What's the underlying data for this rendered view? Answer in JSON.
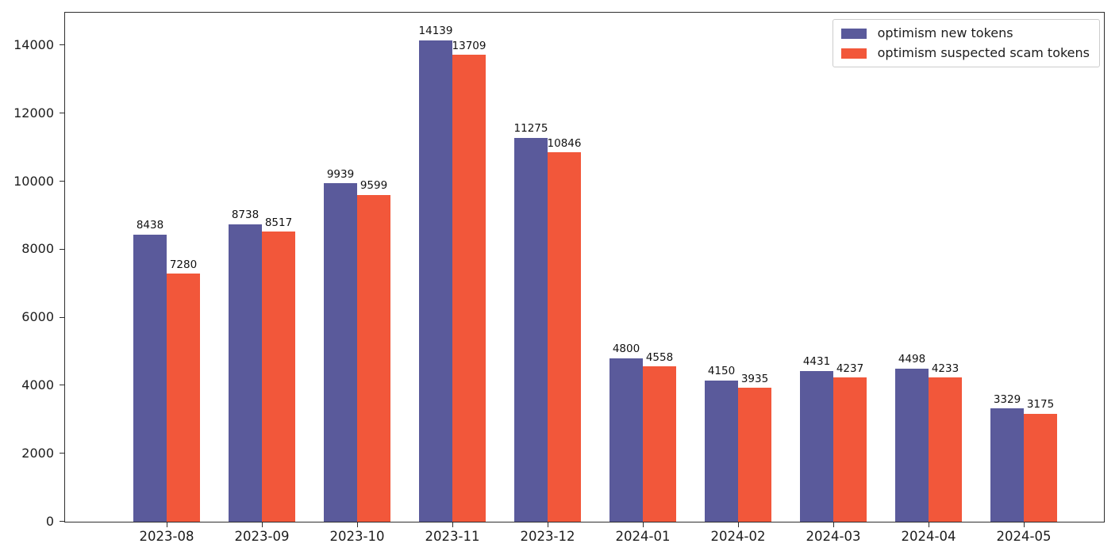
{
  "chart_data": {
    "type": "bar",
    "title": "",
    "xlabel": "",
    "ylabel": "",
    "categories": [
      "2023-08",
      "2023-09",
      "2023-10",
      "2023-11",
      "2023-12",
      "2024-01",
      "2024-02",
      "2024-03",
      "2024-04",
      "2024-05"
    ],
    "series": [
      {
        "name": "optimism new tokens",
        "color": "#5a5a9b",
        "values": [
          8438,
          8738,
          9939,
          14139,
          11275,
          4800,
          4150,
          4431,
          4498,
          3329
        ]
      },
      {
        "name": "optimism suspected scam tokens",
        "color": "#f2573a",
        "values": [
          7280,
          8517,
          9599,
          13709,
          10846,
          4558,
          3935,
          4237,
          4233,
          3175
        ]
      }
    ],
    "ylim": [
      0,
      14950
    ],
    "yticks": [
      0,
      2000,
      4000,
      6000,
      8000,
      10000,
      12000,
      14000
    ],
    "grid": false,
    "legend_position": "upper right",
    "bar_value_labels": true,
    "colors": {
      "background": "#ffffff",
      "spine": "#2e2e2e",
      "text": "#1c1c1c",
      "legend_border": "#cccccc"
    }
  }
}
